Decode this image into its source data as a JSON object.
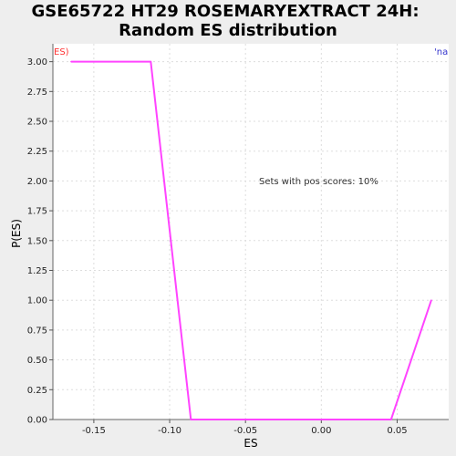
{
  "chart_data": {
    "type": "line",
    "title_line1": "GSE65722 HT29 ROSEMARYEXTRACT 24H:",
    "title_line2": "Random ES distribution",
    "xlabel": "ES",
    "ylabel": "P(ES)",
    "xlim": [
      -0.177,
      0.084
    ],
    "ylim": [
      0,
      3.15
    ],
    "x_ticks": [
      -0.15,
      -0.1,
      -0.05,
      0.0,
      0.05
    ],
    "x_tick_labels": [
      "-0.15",
      "-0.10",
      "-0.05",
      "0.00",
      "0.05"
    ],
    "y_ticks": [
      0,
      0.25,
      0.5,
      0.75,
      1.0,
      1.25,
      1.5,
      1.75,
      2.0,
      2.25,
      2.5,
      2.75,
      3.0
    ],
    "y_tick_labels": [
      "0.00",
      "0.25",
      "0.50",
      "0.75",
      "1.00",
      "1.25",
      "1.50",
      "1.75",
      "2.00",
      "2.25",
      "2.50",
      "2.75",
      "3.00"
    ],
    "grid": true,
    "annotation": "Sets with pos scores: 10%",
    "legend_left": "ES)",
    "legend_right": "'na",
    "colors": {
      "series": "#ff44ff",
      "legend_left": "#ff3333",
      "legend_right": "#3333cc",
      "plot_bg": "#ffffff",
      "grid": "#dddddd"
    },
    "series": [
      {
        "x": [
          -0.165,
          -0.1125,
          -0.086,
          0.046,
          0.0725
        ],
        "y": [
          3.0,
          3.0,
          0.0,
          0.0,
          1.0
        ]
      }
    ]
  }
}
